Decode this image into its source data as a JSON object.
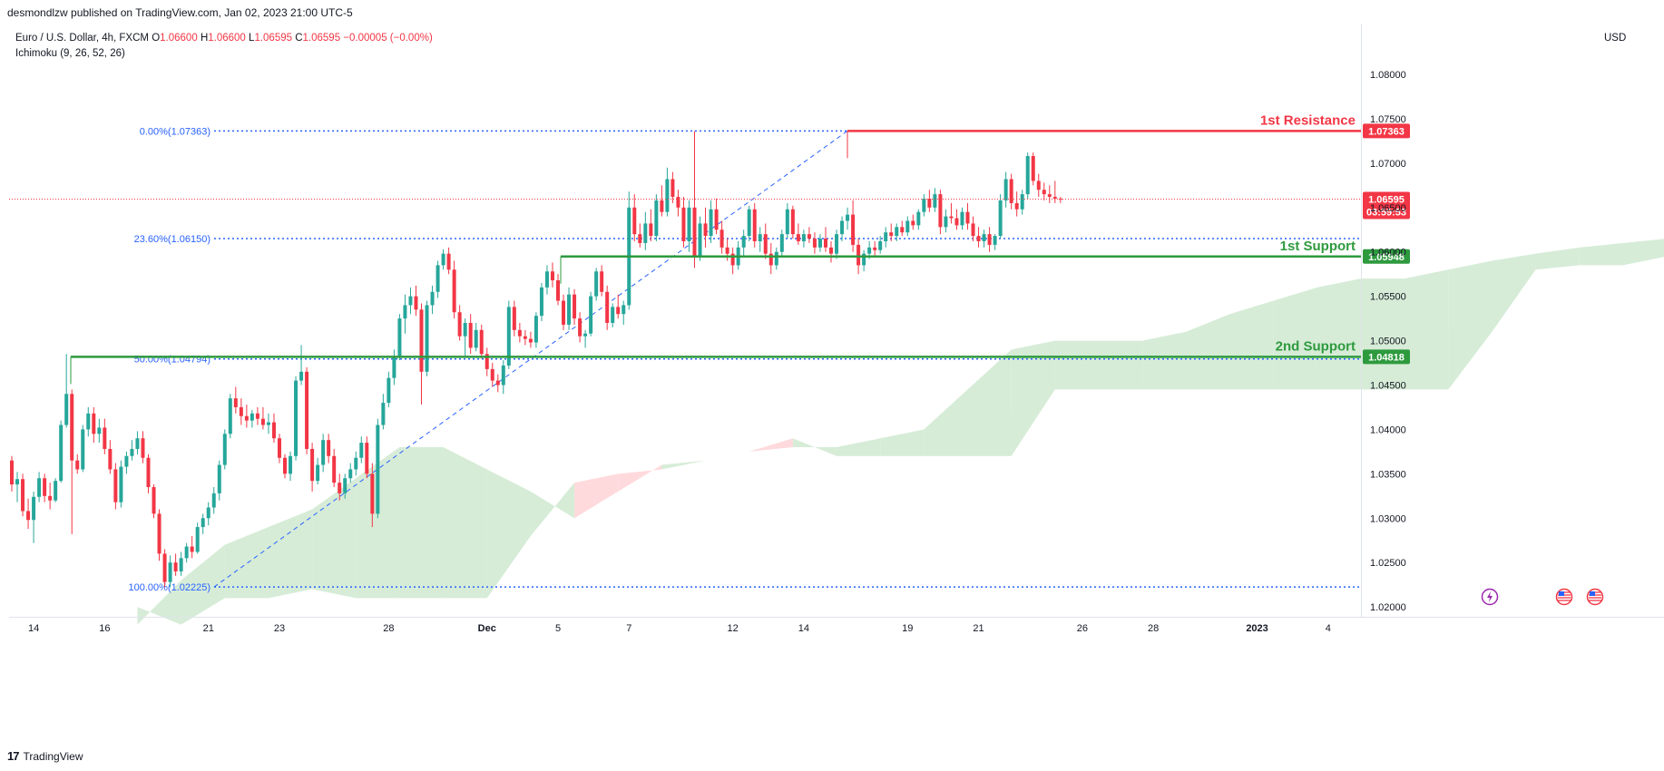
{
  "header": {
    "publisher": "desmondlzw published on TradingView.com, Jan 02, 2023 21:00 UTC-5",
    "symbol": "Euro / U.S. Dollar, 4h, FXCM",
    "o_label": "O",
    "o_value": "1.06600",
    "h_label": "H",
    "h_value": "1.06600",
    "l_label": "L",
    "l_value": "1.06595",
    "c_label": "C",
    "c_value": "1.06595",
    "change": "−0.00005 (−0.00%)",
    "indicator": "Ichimoku (9, 26, 52, 26)",
    "currency": "USD"
  },
  "footer": {
    "logo": "17",
    "brand": "TradingView"
  },
  "colors": {
    "bull": "#26a69a",
    "bear": "#f23645",
    "cloud_bull": "#c8e6c9",
    "cloud_bear": "#ffcdd2",
    "resistance": "#f23645",
    "support": "#2e9a3e",
    "fib": "#2962ff",
    "price": "#f23645"
  },
  "icons": [
    "lightning-icon",
    "us-flag-icon",
    "us-flag-icon"
  ],
  "chart_data": {
    "type": "candlestick",
    "ylim": [
      1.0195,
      1.0845
    ],
    "y_ticks": [
      "1.02000",
      "1.02500",
      "1.03000",
      "1.03500",
      "1.04000",
      "1.04500",
      "1.05000",
      "1.05500",
      "1.06000",
      "1.06500",
      "1.07000",
      "1.07500",
      "1.08000"
    ],
    "x_ticks": [
      "14",
      "16",
      "21",
      "23",
      "28",
      "Dec",
      "5",
      "7",
      "12",
      "14",
      "19",
      "21",
      "26",
      "28",
      "2023",
      "4"
    ],
    "fib_levels": [
      {
        "label": "0.00%(1.07363)",
        "price": 1.07363
      },
      {
        "label": "23.60%(1.06150)",
        "price": 1.0615
      },
      {
        "label": "50.00%(1.04794)",
        "price": 1.04794
      },
      {
        "label": "100.00%(1.02225)",
        "price": 1.02225
      }
    ],
    "levels": [
      {
        "name": "1st Resistance",
        "price": 1.07363,
        "tag": "1.07363",
        "kind": "resistance"
      },
      {
        "name": "1st Support",
        "price": 1.05948,
        "tag": "1.05948",
        "kind": "support"
      },
      {
        "name": "2nd Support",
        "price": 1.04818,
        "tag": "1.04818",
        "kind": "support"
      }
    ],
    "last_price": {
      "price": 1.06595,
      "tag": "1.06595",
      "countdown": "03:59:53"
    },
    "candles": [
      [
        1.0365,
        1.037,
        1.033,
        1.0338
      ],
      [
        1.0338,
        1.0352,
        1.0318,
        1.0344
      ],
      [
        1.0344,
        1.035,
        1.0302,
        1.0308
      ],
      [
        1.0308,
        1.0322,
        1.0288,
        1.0298
      ],
      [
        1.0298,
        1.033,
        1.0272,
        1.0324
      ],
      [
        1.0324,
        1.0352,
        1.0318,
        1.0345
      ],
      [
        1.0345,
        1.035,
        1.0318,
        1.0325
      ],
      [
        1.0325,
        1.034,
        1.031,
        1.032
      ],
      [
        1.032,
        1.0345,
        1.0318,
        1.0342
      ],
      [
        1.0342,
        1.041,
        1.034,
        1.0405
      ],
      [
        1.0405,
        1.0485,
        1.0402,
        1.044
      ],
      [
        1.044,
        1.0445,
        1.0282,
        1.0365
      ],
      [
        1.0365,
        1.0372,
        1.035,
        1.0355
      ],
      [
        1.0355,
        1.0405,
        1.0352,
        1.04
      ],
      [
        1.04,
        1.0425,
        1.0392,
        1.0418
      ],
      [
        1.0418,
        1.0425,
        1.0385,
        1.0395
      ],
      [
        1.0395,
        1.0412,
        1.0385,
        1.0402
      ],
      [
        1.0402,
        1.0412,
        1.0372,
        1.0378
      ],
      [
        1.0378,
        1.0388,
        1.035,
        1.0355
      ],
      [
        1.0355,
        1.0362,
        1.031,
        1.0318
      ],
      [
        1.0318,
        1.0365,
        1.0312,
        1.0358
      ],
      [
        1.0358,
        1.0375,
        1.035,
        1.037
      ],
      [
        1.037,
        1.0388,
        1.0365,
        1.0378
      ],
      [
        1.0378,
        1.0398,
        1.0372,
        1.039
      ],
      [
        1.039,
        1.0398,
        1.0362,
        1.0368
      ],
      [
        1.0368,
        1.0372,
        1.0328,
        1.0335
      ],
      [
        1.0335,
        1.0338,
        1.03,
        1.0305
      ],
      [
        1.0305,
        1.031,
        1.0252,
        1.026
      ],
      [
        1.026,
        1.0265,
        1.0222,
        1.0228
      ],
      [
        1.0228,
        1.0258,
        1.0222,
        1.025
      ],
      [
        1.025,
        1.026,
        1.0235,
        1.024
      ],
      [
        1.024,
        1.0262,
        1.0235,
        1.0255
      ],
      [
        1.0255,
        1.0272,
        1.025,
        1.0268
      ],
      [
        1.0268,
        1.028,
        1.0255,
        1.0262
      ],
      [
        1.0262,
        1.0295,
        1.026,
        1.029
      ],
      [
        1.029,
        1.0305,
        1.0282,
        1.03
      ],
      [
        1.03,
        1.0318,
        1.0292,
        1.0312
      ],
      [
        1.0312,
        1.0335,
        1.0305,
        1.0328
      ],
      [
        1.0328,
        1.0365,
        1.032,
        1.036
      ],
      [
        1.036,
        1.04,
        1.0355,
        1.0395
      ],
      [
        1.0395,
        1.044,
        1.039,
        1.0435
      ],
      [
        1.0435,
        1.0448,
        1.0418,
        1.0425
      ],
      [
        1.0425,
        1.0435,
        1.0405,
        1.0415
      ],
      [
        1.0415,
        1.0428,
        1.0402,
        1.041
      ],
      [
        1.041,
        1.0422,
        1.0402,
        1.0418
      ],
      [
        1.0418,
        1.0425,
        1.0405,
        1.0412
      ],
      [
        1.0412,
        1.0425,
        1.04,
        1.0405
      ],
      [
        1.0405,
        1.0418,
        1.0395,
        1.0408
      ],
      [
        1.0408,
        1.0418,
        1.0385,
        1.039
      ],
      [
        1.039,
        1.0395,
        1.0362,
        1.0368
      ],
      [
        1.0368,
        1.0372,
        1.0345,
        1.035
      ],
      [
        1.035,
        1.0375,
        1.0342,
        1.037
      ],
      [
        1.037,
        1.046,
        1.0365,
        1.0455
      ],
      [
        1.0455,
        1.0495,
        1.045,
        1.0465
      ],
      [
        1.0465,
        1.047,
        1.0372,
        1.0378
      ],
      [
        1.0378,
        1.0385,
        1.033,
        1.0342
      ],
      [
        1.0342,
        1.0368,
        1.0338,
        1.036
      ],
      [
        1.036,
        1.0395,
        1.0352,
        1.0388
      ],
      [
        1.0388,
        1.0395,
        1.0362,
        1.037
      ],
      [
        1.037,
        1.0378,
        1.0335,
        1.034
      ],
      [
        1.034,
        1.035,
        1.032,
        1.0328
      ],
      [
        1.0328,
        1.035,
        1.0322,
        1.0345
      ],
      [
        1.0345,
        1.0362,
        1.034,
        1.0355
      ],
      [
        1.0355,
        1.0375,
        1.0348,
        1.0368
      ],
      [
        1.0368,
        1.0392,
        1.0362,
        1.0385
      ],
      [
        1.0385,
        1.0392,
        1.0345,
        1.035
      ],
      [
        1.035,
        1.0362,
        1.029,
        1.0305
      ],
      [
        1.0305,
        1.0412,
        1.03,
        1.0405
      ],
      [
        1.0405,
        1.044,
        1.04,
        1.043
      ],
      [
        1.043,
        1.0465,
        1.0425,
        1.0458
      ],
      [
        1.0458,
        1.049,
        1.045,
        1.0482
      ],
      [
        1.0482,
        1.053,
        1.0478,
        1.0525
      ],
      [
        1.0525,
        1.0552,
        1.0508,
        1.054
      ],
      [
        1.054,
        1.056,
        1.053,
        1.055
      ],
      [
        1.055,
        1.0562,
        1.0528,
        1.0535
      ],
      [
        1.0535,
        1.0542,
        1.0428,
        1.0465
      ],
      [
        1.0465,
        1.0545,
        1.046,
        1.054
      ],
      [
        1.054,
        1.0562,
        1.053,
        1.0555
      ],
      [
        1.0555,
        1.059,
        1.0548,
        1.0585
      ],
      [
        1.0585,
        1.0603,
        1.058,
        1.0598
      ],
      [
        1.0598,
        1.0605,
        1.0575,
        1.058
      ],
      [
        1.058,
        1.059,
        1.0525,
        1.0532
      ],
      [
        1.0532,
        1.054,
        1.05,
        1.0505
      ],
      [
        1.0505,
        1.0525,
        1.0482,
        1.052
      ],
      [
        1.052,
        1.053,
        1.0485,
        1.0492
      ],
      [
        1.0492,
        1.052,
        1.0488,
        1.0512
      ],
      [
        1.0512,
        1.0518,
        1.048,
        1.0485
      ],
      [
        1.0485,
        1.0492,
        1.046,
        1.0468
      ],
      [
        1.0468,
        1.0475,
        1.0448,
        1.0455
      ],
      [
        1.0455,
        1.0462,
        1.0442,
        1.045
      ],
      [
        1.045,
        1.0478,
        1.044,
        1.0472
      ],
      [
        1.0472,
        1.0545,
        1.0468,
        1.0538
      ],
      [
        1.0538,
        1.0545,
        1.0505,
        1.0512
      ],
      [
        1.0512,
        1.052,
        1.0498,
        1.0505
      ],
      [
        1.0505,
        1.0512,
        1.0495,
        1.0502
      ],
      [
        1.0502,
        1.051,
        1.0492,
        1.0498
      ],
      [
        1.0498,
        1.0532,
        1.0492,
        1.0528
      ],
      [
        1.0528,
        1.0565,
        1.0522,
        1.056
      ],
      [
        1.056,
        1.0585,
        1.0552,
        1.0578
      ],
      [
        1.0578,
        1.0588,
        1.056,
        1.0568
      ],
      [
        1.0568,
        1.0575,
        1.054,
        1.0545
      ],
      [
        1.0545,
        1.0552,
        1.0512,
        1.0518
      ],
      [
        1.0518,
        1.056,
        1.0512,
        1.0552
      ],
      [
        1.0552,
        1.0558,
        1.0518,
        1.0525
      ],
      [
        1.0525,
        1.0532,
        1.0498,
        1.0505
      ],
      [
        1.0505,
        1.0512,
        1.0492,
        1.0508
      ],
      [
        1.0508,
        1.0555,
        1.0505,
        1.055
      ],
      [
        1.055,
        1.0582,
        1.0545,
        1.0578
      ],
      [
        1.0578,
        1.0585,
        1.055,
        1.0555
      ],
      [
        1.0555,
        1.0562,
        1.0512,
        1.052
      ],
      [
        1.052,
        1.0542,
        1.0515,
        1.0538
      ],
      [
        1.0538,
        1.0552,
        1.0525,
        1.053
      ],
      [
        1.053,
        1.0545,
        1.0518,
        1.054
      ],
      [
        1.054,
        1.0668,
        1.0535,
        1.065
      ],
      [
        1.065,
        1.0665,
        1.0612,
        1.062
      ],
      [
        1.062,
        1.0632,
        1.0605,
        1.061
      ],
      [
        1.061,
        1.0645,
        1.0602,
        1.0632
      ],
      [
        1.0632,
        1.0648,
        1.0612,
        1.0618
      ],
      [
        1.0618,
        1.0665,
        1.0612,
        1.0658
      ],
      [
        1.0658,
        1.0675,
        1.064,
        1.0645
      ],
      [
        1.0645,
        1.0695,
        1.064,
        1.0682
      ],
      [
        1.0682,
        1.069,
        1.0655,
        1.0662
      ],
      [
        1.0662,
        1.067,
        1.064,
        1.065
      ],
      [
        1.065,
        1.0662,
        1.0605,
        1.0612
      ],
      [
        1.0612,
        1.0658,
        1.06,
        1.065
      ],
      [
        1.065,
        1.0736,
        1.0582,
        1.0595
      ],
      [
        1.0595,
        1.064,
        1.059,
        1.0632
      ],
      [
        1.0632,
        1.065,
        1.0605,
        1.0618
      ],
      [
        1.0618,
        1.0658,
        1.061,
        1.0648
      ],
      [
        1.0648,
        1.066,
        1.062,
        1.0625
      ],
      [
        1.0625,
        1.0635,
        1.0598,
        1.0605
      ],
      [
        1.0605,
        1.0615,
        1.059,
        1.0598
      ],
      [
        1.0598,
        1.0605,
        1.0575,
        1.0585
      ],
      [
        1.0585,
        1.0612,
        1.058,
        1.0605
      ],
      [
        1.0605,
        1.0625,
        1.0595,
        1.0618
      ],
      [
        1.0618,
        1.0652,
        1.0612,
        1.0648
      ],
      [
        1.0648,
        1.0655,
        1.0605,
        1.0612
      ],
      [
        1.0612,
        1.0628,
        1.06,
        1.062
      ],
      [
        1.062,
        1.0632,
        1.0592,
        1.0598
      ],
      [
        1.0598,
        1.061,
        1.0575,
        1.0585
      ],
      [
        1.0585,
        1.0605,
        1.058,
        1.06
      ],
      [
        1.06,
        1.0625,
        1.0595,
        1.062
      ],
      [
        1.062,
        1.0655,
        1.0615,
        1.0648
      ],
      [
        1.0648,
        1.0652,
        1.0615,
        1.062
      ],
      [
        1.062,
        1.0632,
        1.0608,
        1.0612
      ],
      [
        1.0612,
        1.0625,
        1.0605,
        1.062
      ],
      [
        1.062,
        1.0628,
        1.061,
        1.0615
      ],
      [
        1.0615,
        1.0622,
        1.0598,
        1.0605
      ],
      [
        1.0605,
        1.062,
        1.06,
        1.0615
      ],
      [
        1.0615,
        1.0628,
        1.06,
        1.0605
      ],
      [
        1.0605,
        1.0612,
        1.0588,
        1.0598
      ],
      [
        1.0598,
        1.0625,
        1.0592,
        1.062
      ],
      [
        1.062,
        1.064,
        1.0612,
        1.0635
      ],
      [
        1.0635,
        1.065,
        1.0625,
        1.0642
      ],
      [
        1.0642,
        1.0658,
        1.06,
        1.0608
      ],
      [
        1.0608,
        1.0615,
        1.0575,
        1.0585
      ],
      [
        1.0585,
        1.0602,
        1.0578,
        1.0598
      ],
      [
        1.0598,
        1.0612,
        1.0592,
        1.0605
      ],
      [
        1.0605,
        1.0612,
        1.0595,
        1.0602
      ],
      [
        1.0602,
        1.0618,
        1.0598,
        1.0612
      ],
      [
        1.0612,
        1.0628,
        1.0605,
        1.0622
      ],
      [
        1.0622,
        1.0632,
        1.0612,
        1.0618
      ],
      [
        1.0618,
        1.0632,
        1.0612,
        1.0628
      ],
      [
        1.0628,
        1.0635,
        1.0618,
        1.0622
      ],
      [
        1.0622,
        1.064,
        1.0618,
        1.0635
      ],
      [
        1.0635,
        1.0642,
        1.0625,
        1.063
      ],
      [
        1.063,
        1.0648,
        1.0625,
        1.0645
      ],
      [
        1.0645,
        1.0665,
        1.064,
        1.066
      ],
      [
        1.066,
        1.067,
        1.0645,
        1.065
      ],
      [
        1.065,
        1.0672,
        1.0645,
        1.0665
      ],
      [
        1.0665,
        1.067,
        1.062,
        1.0628
      ],
      [
        1.0628,
        1.0648,
        1.0622,
        1.064
      ],
      [
        1.064,
        1.0655,
        1.0632,
        1.0638
      ],
      [
        1.0638,
        1.0648,
        1.0625,
        1.063
      ],
      [
        1.063,
        1.065,
        1.0625,
        1.0645
      ],
      [
        1.0645,
        1.0655,
        1.0625,
        1.0632
      ],
      [
        1.0632,
        1.064,
        1.0612,
        1.0618
      ],
      [
        1.0618,
        1.0628,
        1.0605,
        1.0612
      ],
      [
        1.0612,
        1.0625,
        1.0605,
        1.062
      ],
      [
        1.062,
        1.0628,
        1.06,
        1.0608
      ],
      [
        1.0608,
        1.062,
        1.0602,
        1.0618
      ],
      [
        1.0618,
        1.0665,
        1.0615,
        1.0658
      ],
      [
        1.0658,
        1.069,
        1.065,
        1.0682
      ],
      [
        1.0682,
        1.0688,
        1.0648,
        1.0655
      ],
      [
        1.0655,
        1.0668,
        1.064,
        1.0648
      ],
      [
        1.0648,
        1.067,
        1.0642,
        1.0665
      ],
      [
        1.0665,
        1.0712,
        1.066,
        1.0708
      ],
      [
        1.0708,
        1.0712,
        1.0675,
        1.068
      ],
      [
        1.068,
        1.0688,
        1.0662,
        1.067
      ],
      [
        1.067,
        1.0678,
        1.0658,
        1.0665
      ],
      [
        1.0665,
        1.0675,
        1.0655,
        1.0662
      ],
      [
        1.0662,
        1.068,
        1.0655,
        1.066
      ],
      [
        1.066,
        1.0662,
        1.0655,
        1.06595
      ]
    ],
    "cloud": [
      [
        1.018,
        1.02
      ],
      [
        1.023,
        1.018
      ],
      [
        1.027,
        1.021
      ],
      [
        1.029,
        1.021
      ],
      [
        1.031,
        1.022
      ],
      [
        1.0345,
        1.021
      ],
      [
        1.038,
        1.021
      ],
      [
        1.038,
        1.021
      ],
      [
        1.0355,
        1.021
      ],
      [
        1.033,
        1.028
      ],
      [
        1.03,
        1.034
      ],
      [
        1.033,
        1.035
      ],
      [
        1.036,
        1.0355
      ],
      [
        1.0365,
        1.0365
      ],
      [
        1.0375,
        1.0375
      ],
      [
        1.038,
        1.039
      ],
      [
        1.038,
        1.037
      ],
      [
        1.039,
        1.037
      ],
      [
        1.04,
        1.037
      ],
      [
        1.0445,
        1.037
      ],
      [
        1.049,
        1.037
      ],
      [
        1.05,
        1.0445
      ],
      [
        1.05,
        1.0445
      ],
      [
        1.05,
        1.0445
      ],
      [
        1.051,
        1.0445
      ],
      [
        1.053,
        1.0445
      ],
      [
        1.0545,
        1.0445
      ],
      [
        1.056,
        1.0445
      ],
      [
        1.057,
        1.0445
      ],
      [
        1.057,
        1.0445
      ],
      [
        1.058,
        1.0445
      ],
      [
        1.059,
        1.051
      ],
      [
        1.0598,
        1.058
      ],
      [
        1.0605,
        1.0585
      ],
      [
        1.061,
        1.0585
      ],
      [
        1.0615,
        1.0595
      ],
      [
        1.062,
        1.0595
      ],
      [
        1.0625,
        1.0595
      ],
      [
        1.063,
        1.0605
      ],
      [
        1.0635,
        1.061
      ],
      [
        1.064,
        1.061
      ],
      [
        1.0645,
        1.062
      ],
      [
        1.064,
        1.0625
      ],
      [
        1.064,
        1.063
      ],
      [
        1.0625,
        1.065
      ],
      [
        1.062,
        1.0655
      ],
      [
        1.0615,
        1.0655
      ],
      [
        1.062,
        1.0655
      ],
      [
        1.063,
        1.065
      ],
      [
        1.063,
        1.063
      ],
      [
        1.0635,
        1.0625
      ],
      [
        1.064,
        1.0625
      ],
      [
        1.0642,
        1.0628
      ]
    ]
  }
}
